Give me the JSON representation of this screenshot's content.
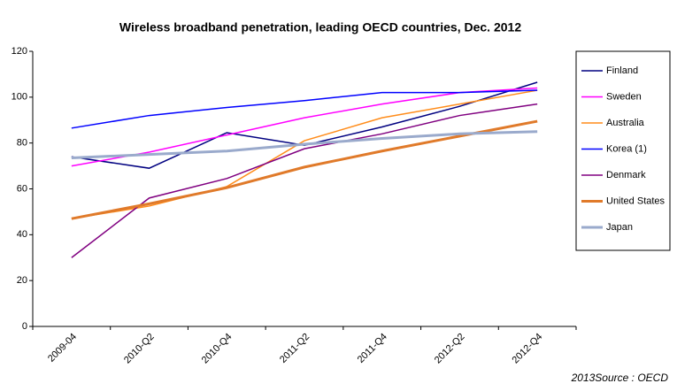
{
  "chart_data": {
    "type": "line",
    "title": "Wireless broadband penetration, leading OECD countries,  Dec. 2012",
    "source": "2013Source : OECD",
    "categories": [
      "2009-04",
      "2010-Q2",
      "2010-Q4",
      "2011-Q2",
      "2011-Q4",
      "2012-Q2",
      "2012-Q4"
    ],
    "series": [
      {
        "name": "Finland",
        "color": "#000080",
        "line_width": 1.5,
        "values": [
          74,
          69,
          84.5,
          79,
          87,
          96,
          106.5
        ]
      },
      {
        "name": "Sweden",
        "color": "#ff00ff",
        "line_width": 1.5,
        "values": [
          70,
          76,
          83.5,
          91,
          97,
          102,
          104
        ]
      },
      {
        "name": "Australia",
        "color": "#ff8c1a",
        "line_width": 1.5,
        "values": [
          47,
          52.5,
          61,
          81,
          91,
          97,
          103
        ]
      },
      {
        "name": "Korea (1)",
        "color": "#0000ff",
        "line_width": 1.5,
        "values": [
          86.5,
          92,
          95.5,
          98.5,
          102,
          102,
          103
        ]
      },
      {
        "name": "Denmark",
        "color": "#800080",
        "line_width": 1.5,
        "values": [
          30,
          56,
          64.5,
          77.5,
          84,
          92,
          97
        ]
      },
      {
        "name": "United States",
        "color": "#e07a2a",
        "line_width": 3,
        "values": [
          47,
          53.5,
          60.5,
          69.5,
          76.5,
          83,
          89.5
        ]
      },
      {
        "name": "Japan",
        "color": "#9aaacc",
        "line_width": 3,
        "values": [
          73.5,
          75,
          76.5,
          79.5,
          82,
          84,
          85
        ]
      }
    ],
    "ylim": [
      0,
      120
    ],
    "yticks": [
      0,
      20,
      40,
      60,
      80,
      100,
      120
    ],
    "grid": false,
    "legend": "right"
  }
}
